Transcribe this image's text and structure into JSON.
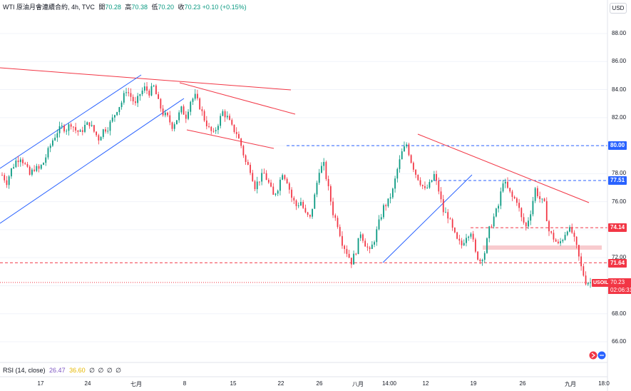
{
  "header": {
    "symbol": "WTI 原油月會連續合約, 4h, TVC",
    "open_label": "開",
    "open_value": "70.28",
    "high_label": "高",
    "high_value": "70.38",
    "low_label": "低",
    "low_value": "70.20",
    "close_label": "收",
    "close_value": "70.23",
    "change": "+0.10 (+0.15%)"
  },
  "rsi_header": {
    "label": "RSI (14, close)",
    "value1": "26.47",
    "value2": "36.60",
    "extra": "∅ ∅ ∅ ∅"
  },
  "currency": "USD",
  "y_axis": {
    "labels": [
      "88.00",
      "86.00",
      "84.00",
      "82.00",
      "78.00",
      "76.00",
      "72.00",
      "68.00",
      "66.00"
    ],
    "min": 65.0,
    "max": 89.5
  },
  "x_axis": {
    "labels": [
      "17",
      "24",
      "七月",
      "8",
      "15",
      "22",
      "26",
      "八月",
      "14:00",
      "12",
      "19",
      "26",
      "九月",
      "18:0"
    ]
  },
  "price_tags": {
    "tag_80": "80.00",
    "tag_7751": "77.51",
    "tag_7414": "74.14",
    "tag_7164": "71.64",
    "symbol_tag": "USOIL",
    "last_price": "70.23",
    "countdown": "02:06:31"
  },
  "colors": {
    "up": "#089981",
    "down": "#f23645",
    "trend_red": "#f23645",
    "trend_blue": "#2962ff",
    "zone": "#f7c5c9"
  },
  "chart_data": {
    "type": "candlestick",
    "symbol": "USOIL",
    "timeframe": "4h",
    "ylim": [
      65.0,
      89.5
    ],
    "horizontal_levels": [
      80.0,
      77.51,
      74.14,
      71.64,
      70.23
    ],
    "support_zone": [
      72.6,
      72.9
    ],
    "path": [
      [
        0,
        77.9
      ],
      [
        2,
        77.4
      ],
      [
        4,
        78.3
      ],
      [
        6,
        78.9
      ],
      [
        8,
        79.2
      ],
      [
        10,
        78.6
      ],
      [
        12,
        77.9
      ],
      [
        14,
        78.4
      ],
      [
        16,
        78.3
      ],
      [
        18,
        78.8
      ],
      [
        20,
        79.6
      ],
      [
        22,
        80.4
      ],
      [
        24,
        81.0
      ],
      [
        26,
        81.3
      ],
      [
        28,
        81.2
      ],
      [
        30,
        81.6
      ],
      [
        32,
        81.1
      ],
      [
        34,
        80.9
      ],
      [
        36,
        81.4
      ],
      [
        38,
        81.6
      ],
      [
        40,
        81.0
      ],
      [
        42,
        80.5
      ],
      [
        44,
        81.1
      ],
      [
        46,
        81.3
      ],
      [
        48,
        81.9
      ],
      [
        50,
        82.6
      ],
      [
        52,
        83.1
      ],
      [
        54,
        84.0
      ],
      [
        56,
        83.5
      ],
      [
        58,
        82.9
      ],
      [
        60,
        83.7
      ],
      [
        62,
        84.1
      ],
      [
        64,
        83.8
      ],
      [
        66,
        84.2
      ],
      [
        68,
        83.1
      ],
      [
        70,
        82.3
      ],
      [
        72,
        82.0
      ],
      [
        74,
        81.4
      ],
      [
        76,
        81.9
      ],
      [
        78,
        82.6
      ],
      [
        80,
        82.1
      ],
      [
        82,
        83.2
      ],
      [
        84,
        83.5
      ],
      [
        86,
        82.8
      ],
      [
        88,
        81.9
      ],
      [
        90,
        81.2
      ],
      [
        92,
        80.8
      ],
      [
        94,
        81.6
      ],
      [
        96,
        82.4
      ],
      [
        98,
        82.0
      ],
      [
        100,
        81.3
      ],
      [
        102,
        80.9
      ],
      [
        104,
        80.0
      ],
      [
        106,
        78.8
      ],
      [
        108,
        78.3
      ],
      [
        110,
        77.1
      ],
      [
        112,
        77.6
      ],
      [
        114,
        78.0
      ],
      [
        116,
        77.3
      ],
      [
        118,
        76.4
      ],
      [
        120,
        77.0
      ],
      [
        122,
        78.1
      ],
      [
        124,
        77.5
      ],
      [
        126,
        76.3
      ],
      [
        128,
        75.7
      ],
      [
        130,
        76.0
      ],
      [
        132,
        75.1
      ],
      [
        134,
        74.8
      ],
      [
        136,
        76.4
      ],
      [
        138,
        78.3
      ],
      [
        140,
        78.6
      ],
      [
        142,
        76.9
      ],
      [
        144,
        75.2
      ],
      [
        146,
        74.4
      ],
      [
        148,
        73.1
      ],
      [
        150,
        72.4
      ],
      [
        152,
        71.7
      ],
      [
        154,
        72.5
      ],
      [
        156,
        73.8
      ],
      [
        158,
        73.0
      ],
      [
        160,
        72.4
      ],
      [
        162,
        73.3
      ],
      [
        164,
        74.5
      ],
      [
        166,
        75.6
      ],
      [
        168,
        76.0
      ],
      [
        170,
        76.8
      ],
      [
        172,
        78.3
      ],
      [
        174,
        79.5
      ],
      [
        176,
        80.1
      ],
      [
        178,
        78.9
      ],
      [
        180,
        78.0
      ],
      [
        182,
        77.4
      ],
      [
        184,
        76.8
      ],
      [
        186,
        77.2
      ],
      [
        188,
        77.9
      ],
      [
        190,
        76.8
      ],
      [
        192,
        75.3
      ],
      [
        194,
        75.0
      ],
      [
        196,
        74.0
      ],
      [
        198,
        73.2
      ],
      [
        200,
        72.9
      ],
      [
        202,
        73.6
      ],
      [
        204,
        73.9
      ],
      [
        206,
        72.3
      ],
      [
        208,
        71.8
      ],
      [
        210,
        72.4
      ],
      [
        212,
        74.0
      ],
      [
        214,
        74.9
      ],
      [
        216,
        75.7
      ],
      [
        218,
        77.5
      ],
      [
        220,
        76.9
      ],
      [
        222,
        76.3
      ],
      [
        224,
        76.1
      ],
      [
        226,
        74.8
      ],
      [
        228,
        74.2
      ],
      [
        230,
        75.3
      ],
      [
        232,
        76.9
      ],
      [
        234,
        76.2
      ],
      [
        236,
        75.8
      ],
      [
        238,
        73.9
      ],
      [
        240,
        73.4
      ],
      [
        242,
        72.9
      ],
      [
        244,
        73.4
      ],
      [
        246,
        74.1
      ],
      [
        248,
        73.8
      ],
      [
        250,
        72.7
      ],
      [
        252,
        71.3
      ],
      [
        254,
        70.3
      ],
      [
        256,
        70.23
      ]
    ]
  }
}
